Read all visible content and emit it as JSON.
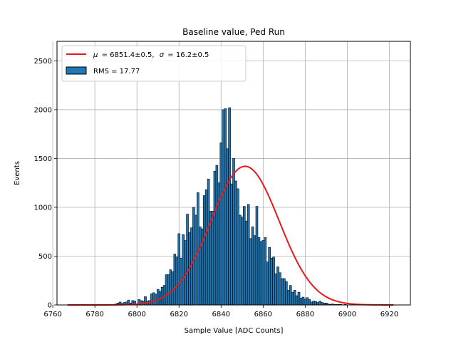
{
  "chart_data": {
    "type": "bar",
    "title": "Baseline value, Ped Run",
    "xlabel": "Sample Value [ADC Counts]",
    "ylabel": "Events",
    "xlim": [
      6762,
      6930
    ],
    "ylim": [
      0,
      2700
    ],
    "xticks": [
      6760,
      6780,
      6800,
      6820,
      6840,
      6860,
      6880,
      6900,
      6920
    ],
    "yticks": [
      0,
      500,
      1000,
      1500,
      2000,
      2500
    ],
    "grid": true,
    "legend_position": "top-left",
    "histogram": {
      "name": "RMS = 17.77",
      "color": "#1f77b4",
      "edgecolor": "#000000",
      "bin_width": 1,
      "x": [
        6788,
        6789,
        6790,
        6791,
        6792,
        6793,
        6794,
        6795,
        6796,
        6797,
        6798,
        6799,
        6800,
        6801,
        6802,
        6803,
        6804,
        6805,
        6806,
        6807,
        6808,
        6809,
        6810,
        6811,
        6812,
        6813,
        6814,
        6815,
        6816,
        6817,
        6818,
        6819,
        6820,
        6821,
        6822,
        6823,
        6824,
        6825,
        6826,
        6827,
        6828,
        6829,
        6830,
        6831,
        6832,
        6833,
        6834,
        6835,
        6836,
        6837,
        6838,
        6839,
        6840,
        6841,
        6842,
        6843,
        6844,
        6845,
        6846,
        6847,
        6848,
        6849,
        6850,
        6851,
        6852,
        6853,
        6854,
        6855,
        6856,
        6857,
        6858,
        6859,
        6860,
        6861,
        6862,
        6863,
        6864,
        6865,
        6866,
        6867,
        6868,
        6869,
        6870,
        6871,
        6872,
        6873,
        6874,
        6875,
        6876,
        6877,
        6878,
        6879,
        6880,
        6881,
        6882,
        6883,
        6884,
        6885,
        6886,
        6887,
        6888,
        6889,
        6890,
        6891,
        6892,
        6893,
        6894,
        6895,
        6896,
        6897,
        6898,
        6899,
        6900,
        6901,
        6902,
        6903,
        6904,
        6905,
        6906,
        6907,
        6908
      ],
      "values": [
        5,
        5,
        10,
        20,
        30,
        15,
        25,
        30,
        50,
        20,
        45,
        40,
        10,
        55,
        45,
        40,
        85,
        40,
        45,
        115,
        125,
        110,
        160,
        140,
        180,
        200,
        310,
        310,
        360,
        340,
        520,
        490,
        730,
        480,
        720,
        660,
        930,
        740,
        790,
        1000,
        920,
        1150,
        800,
        780,
        1120,
        1180,
        1290,
        960,
        960,
        1370,
        1430,
        1250,
        1660,
        2000,
        2010,
        1600,
        2020,
        1240,
        1500,
        1270,
        1190,
        920,
        900,
        1010,
        860,
        1030,
        680,
        800,
        710,
        1010,
        690,
        650,
        660,
        690,
        440,
        590,
        480,
        490,
        320,
        390,
        330,
        270,
        270,
        240,
        150,
        200,
        130,
        150,
        95,
        130,
        70,
        80,
        60,
        75,
        55,
        30,
        40,
        35,
        25,
        40,
        25,
        20,
        20,
        10,
        5,
        10,
        5,
        5,
        5,
        5,
        0,
        5,
        0,
        0,
        0,
        0,
        0,
        0,
        0,
        0,
        0
      ]
    },
    "fit": {
      "name": "μ = 6851.4±0.5, σ = 16.2±0.5",
      "color": "#e41a1c",
      "mu": 6851.4,
      "sigma": 16.2,
      "amplitude": 1420,
      "x_range": [
        6767,
        6922
      ]
    }
  },
  "legend": {
    "fit_label_mu": "μ",
    "fit_label_mu_value": "= 6851.4±0.5,",
    "fit_label_sigma": "σ",
    "fit_label_sigma_value": "= 16.2±0.5",
    "hist_label": "RMS = 17.77"
  }
}
